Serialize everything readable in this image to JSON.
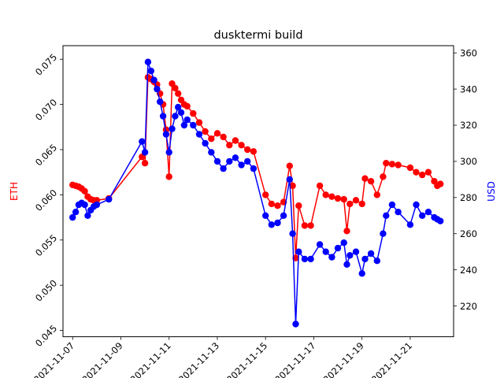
{
  "chart_data": {
    "type": "line",
    "title": "dusktermi build",
    "xlabel": "",
    "x_ticks": [
      "2021-11-07",
      "2021-11-09",
      "2021-11-11",
      "2021-11-13",
      "2021-11-15",
      "2021-11-17",
      "2021-11-19",
      "2021-11-21"
    ],
    "xlim": [
      "2021-11-06.6",
      "2021-11-22.8"
    ],
    "left_axis": {
      "label": "ETH",
      "color": "#ff0000",
      "ylim": [
        0.0443,
        0.0765
      ],
      "ticks": [
        "0.045",
        "0.050",
        "0.055",
        "0.060",
        "0.065",
        "0.070",
        "0.075"
      ]
    },
    "right_axis": {
      "label": "USD",
      "color": "#0000ff",
      "ylim": [
        203,
        364
      ],
      "ticks": [
        "220",
        "240",
        "260",
        "280",
        "300",
        "320",
        "340",
        "360"
      ]
    },
    "series": [
      {
        "name": "ETH",
        "axis": "left",
        "color": "#ff0000",
        "marker": "o",
        "points": [
          [
            "2021-11-07 00:00",
            0.0611
          ],
          [
            "2021-11-07 03:00",
            0.061
          ],
          [
            "2021-11-07 06:00",
            0.0609
          ],
          [
            "2021-11-07 09:00",
            0.0607
          ],
          [
            "2021-11-07 12:00",
            0.0604
          ],
          [
            "2021-11-07 15:00",
            0.0598
          ],
          [
            "2021-11-07 18:00",
            0.0595
          ],
          [
            "2021-11-07 21:00",
            0.0594
          ],
          [
            "2021-11-08 00:00",
            0.0594
          ],
          [
            "2021-11-08 12:00",
            0.0596
          ],
          [
            "2021-11-09 21:00",
            0.0642
          ],
          [
            "2021-11-10 00:00",
            0.0635
          ],
          [
            "2021-11-10 03:00",
            0.073
          ],
          [
            "2021-11-10 06:00",
            0.0728
          ],
          [
            "2021-11-10 09:00",
            0.0725
          ],
          [
            "2021-11-10 12:00",
            0.0722
          ],
          [
            "2021-11-10 15:00",
            0.0712
          ],
          [
            "2021-11-10 18:00",
            0.07
          ],
          [
            "2021-11-10 21:00",
            0.0672
          ],
          [
            "2021-11-11 00:00",
            0.062
          ],
          [
            "2021-11-11 03:00",
            0.0723
          ],
          [
            "2021-11-11 06:00",
            0.0718
          ],
          [
            "2021-11-11 09:00",
            0.0712
          ],
          [
            "2021-11-11 12:00",
            0.0705
          ],
          [
            "2021-11-11 15:00",
            0.07
          ],
          [
            "2021-11-11 18:00",
            0.0698
          ],
          [
            "2021-11-12 00:00",
            0.069
          ],
          [
            "2021-11-12 06:00",
            0.068
          ],
          [
            "2021-11-12 12:00",
            0.067
          ],
          [
            "2021-11-12 18:00",
            0.0662
          ],
          [
            "2021-11-13 00:00",
            0.0668
          ],
          [
            "2021-11-13 06:00",
            0.0664
          ],
          [
            "2021-11-13 12:00",
            0.0655
          ],
          [
            "2021-11-13 18:00",
            0.066
          ],
          [
            "2021-11-14 00:00",
            0.0655
          ],
          [
            "2021-11-14 06:00",
            0.065
          ],
          [
            "2021-11-14 12:00",
            0.0648
          ],
          [
            "2021-11-15 00:00",
            0.06
          ],
          [
            "2021-11-15 06:00",
            0.059
          ],
          [
            "2021-11-15 12:00",
            0.0588
          ],
          [
            "2021-11-15 18:00",
            0.0592
          ],
          [
            "2021-11-16 00:00",
            0.0632
          ],
          [
            "2021-11-16 03:00",
            0.061
          ],
          [
            "2021-11-16 06:00",
            0.053
          ],
          [
            "2021-11-16 09:00",
            0.0588
          ],
          [
            "2021-11-16 15:00",
            0.0566
          ],
          [
            "2021-11-16 21:00",
            0.0566
          ],
          [
            "2021-11-17 06:00",
            0.061
          ],
          [
            "2021-11-17 12:00",
            0.06
          ],
          [
            "2021-11-17 18:00",
            0.0598
          ],
          [
            "2021-11-18 00:00",
            0.0596
          ],
          [
            "2021-11-18 06:00",
            0.0595
          ],
          [
            "2021-11-18 09:00",
            0.056
          ],
          [
            "2021-11-18 12:00",
            0.059
          ],
          [
            "2021-11-18 18:00",
            0.0594
          ],
          [
            "2021-11-19 00:00",
            0.059
          ],
          [
            "2021-11-19 03:00",
            0.0618
          ],
          [
            "2021-11-19 09:00",
            0.0615
          ],
          [
            "2021-11-19 15:00",
            0.06
          ],
          [
            "2021-11-19 21:00",
            0.062
          ],
          [
            "2021-11-20 00:00",
            0.0635
          ],
          [
            "2021-11-20 06:00",
            0.0634
          ],
          [
            "2021-11-20 12:00",
            0.0633
          ],
          [
            "2021-11-21 00:00",
            0.063
          ],
          [
            "2021-11-21 06:00",
            0.0625
          ],
          [
            "2021-11-21 12:00",
            0.0622
          ],
          [
            "2021-11-21 18:00",
            0.0625
          ],
          [
            "2021-11-22 00:00",
            0.0615
          ],
          [
            "2021-11-22 03:00",
            0.061
          ],
          [
            "2021-11-22 06:00",
            0.0612
          ]
        ]
      },
      {
        "name": "USD",
        "axis": "right",
        "color": "#0000ff",
        "marker": "o",
        "points": [
          [
            "2021-11-07 00:00",
            269
          ],
          [
            "2021-11-07 03:00",
            272
          ],
          [
            "2021-11-07 06:00",
            276
          ],
          [
            "2021-11-07 09:00",
            277
          ],
          [
            "2021-11-07 12:00",
            276
          ],
          [
            "2021-11-07 15:00",
            270
          ],
          [
            "2021-11-07 18:00",
            273
          ],
          [
            "2021-11-07 21:00",
            275
          ],
          [
            "2021-11-08 00:00",
            276
          ],
          [
            "2021-11-08 12:00",
            279
          ],
          [
            "2021-11-09 21:00",
            311
          ],
          [
            "2021-11-10 00:00",
            305
          ],
          [
            "2021-11-10 03:00",
            355
          ],
          [
            "2021-11-10 06:00",
            350
          ],
          [
            "2021-11-10 09:00",
            345
          ],
          [
            "2021-11-10 12:00",
            340
          ],
          [
            "2021-11-10 15:00",
            333
          ],
          [
            "2021-11-10 18:00",
            325
          ],
          [
            "2021-11-10 21:00",
            315
          ],
          [
            "2021-11-11 00:00",
            305
          ],
          [
            "2021-11-11 03:00",
            318
          ],
          [
            "2021-11-11 06:00",
            325
          ],
          [
            "2021-11-11 09:00",
            330
          ],
          [
            "2021-11-11 12:00",
            327
          ],
          [
            "2021-11-11 15:00",
            320
          ],
          [
            "2021-11-11 18:00",
            323
          ],
          [
            "2021-11-12 00:00",
            320
          ],
          [
            "2021-11-12 06:00",
            315
          ],
          [
            "2021-11-12 12:00",
            310
          ],
          [
            "2021-11-12 18:00",
            305
          ],
          [
            "2021-11-13 00:00",
            300
          ],
          [
            "2021-11-13 06:00",
            296
          ],
          [
            "2021-11-13 12:00",
            300
          ],
          [
            "2021-11-13 18:00",
            302
          ],
          [
            "2021-11-14 00:00",
            298
          ],
          [
            "2021-11-14 06:00",
            300
          ],
          [
            "2021-11-14 12:00",
            296
          ],
          [
            "2021-11-15 00:00",
            270
          ],
          [
            "2021-11-15 06:00",
            265
          ],
          [
            "2021-11-15 12:00",
            266
          ],
          [
            "2021-11-15 18:00",
            270
          ],
          [
            "2021-11-16 00:00",
            290
          ],
          [
            "2021-11-16 03:00",
            260
          ],
          [
            "2021-11-16 06:00",
            210
          ],
          [
            "2021-11-16 09:00",
            250
          ],
          [
            "2021-11-16 15:00",
            246
          ],
          [
            "2021-11-16 21:00",
            246
          ],
          [
            "2021-11-17 06:00",
            254
          ],
          [
            "2021-11-17 12:00",
            250
          ],
          [
            "2021-11-17 18:00",
            247
          ],
          [
            "2021-11-18 00:00",
            252
          ],
          [
            "2021-11-18 06:00",
            255
          ],
          [
            "2021-11-18 09:00",
            243
          ],
          [
            "2021-11-18 12:00",
            248
          ],
          [
            "2021-11-18 18:00",
            250
          ],
          [
            "2021-11-19 00:00",
            238
          ],
          [
            "2021-11-19 03:00",
            246
          ],
          [
            "2021-11-19 09:00",
            249
          ],
          [
            "2021-11-19 15:00",
            245
          ],
          [
            "2021-11-19 21:00",
            260
          ],
          [
            "2021-11-20 00:00",
            270
          ],
          [
            "2021-11-20 06:00",
            276
          ],
          [
            "2021-11-20 12:00",
            272
          ],
          [
            "2021-11-21 00:00",
            265
          ],
          [
            "2021-11-21 06:00",
            276
          ],
          [
            "2021-11-21 12:00",
            270
          ],
          [
            "2021-11-21 18:00",
            272
          ],
          [
            "2021-11-22 00:00",
            269
          ],
          [
            "2021-11-22 03:00",
            268
          ],
          [
            "2021-11-22 06:00",
            267
          ]
        ]
      }
    ]
  }
}
